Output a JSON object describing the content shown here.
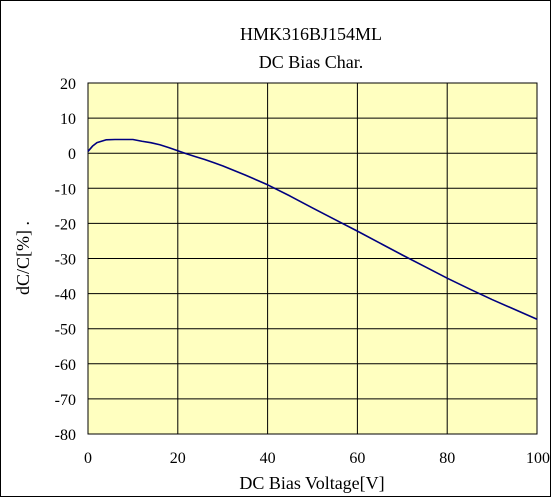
{
  "chart_data": {
    "type": "line",
    "title": "HMK316BJ154ML",
    "subtitle": "DC Bias Char.",
    "xlabel": "DC Bias Voltage[V]",
    "ylabel": "dC/C[%] .",
    "xlim": [
      0,
      100
    ],
    "ylim": [
      -80,
      20
    ],
    "x_ticks": [
      "0",
      "20",
      "40",
      "60",
      "80",
      "100"
    ],
    "y_ticks": [
      "20",
      "10",
      "0",
      "-10",
      "-20",
      "-30",
      "-40",
      "-50",
      "-60",
      "-70",
      "-80"
    ],
    "grid": true,
    "legend": "none",
    "series": [
      {
        "x": [
          0,
          1,
          2,
          4,
          6,
          8,
          10,
          12,
          14,
          16,
          18,
          20,
          22,
          24,
          26,
          28,
          30,
          35,
          40,
          45,
          50,
          55,
          60,
          65,
          70,
          75,
          80,
          85,
          90,
          95,
          100
        ],
        "y": [
          0.5,
          2.0,
          3.0,
          3.8,
          3.9,
          3.9,
          3.9,
          3.4,
          3.0,
          2.4,
          1.6,
          0.7,
          -0.2,
          -1.0,
          -1.8,
          -2.7,
          -3.6,
          -6.2,
          -9.0,
          -12.2,
          -15.6,
          -18.9,
          -22.2,
          -25.6,
          -29.0,
          -32.3,
          -35.6,
          -38.7,
          -41.7,
          -44.5,
          -47.3
        ]
      }
    ],
    "colors": {
      "plot_bg": "#ffffc0",
      "line": "#000080",
      "grid": "#000000"
    }
  }
}
